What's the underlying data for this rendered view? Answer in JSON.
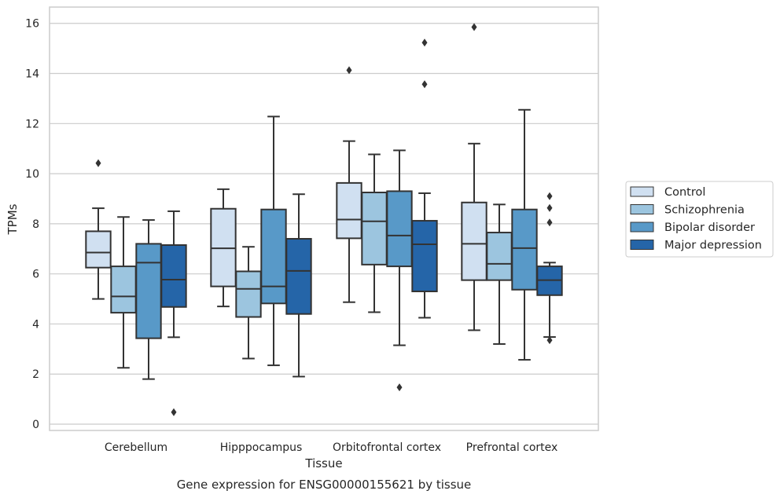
{
  "chart_data": {
    "type": "box",
    "xlabel": "Tissue",
    "ylabel": "TPMs",
    "caption": "Gene expression for ENSG00000155621 by tissue",
    "ylim": [
      -0.25,
      16.65
    ],
    "yticks": [
      0,
      2,
      4,
      6,
      8,
      10,
      12,
      14,
      16
    ],
    "grid": "horizontal",
    "legend_position": "right",
    "categories": [
      "Cerebellum",
      "Hipppocampus",
      "Orbitofrontal cortex",
      "Prefrontal cortex"
    ],
    "series": [
      {
        "name": "Control",
        "color": "#d0e0f1",
        "boxes": [
          {
            "whislo": 5.0,
            "q1": 6.25,
            "med": 6.85,
            "q3": 7.7,
            "whishi": 8.62,
            "fliers": [
              10.42
            ]
          },
          {
            "whislo": 4.7,
            "q1": 5.5,
            "med": 7.02,
            "q3": 8.6,
            "whishi": 9.38,
            "fliers": []
          },
          {
            "whislo": 4.87,
            "q1": 7.42,
            "med": 8.17,
            "q3": 9.63,
            "whishi": 11.3,
            "fliers": [
              14.13
            ]
          },
          {
            "whislo": 3.75,
            "q1": 5.75,
            "med": 7.2,
            "q3": 8.85,
            "whishi": 11.2,
            "fliers": [
              15.85
            ]
          }
        ]
      },
      {
        "name": "Schizophrenia",
        "color": "#9cc5df",
        "boxes": [
          {
            "whislo": 2.25,
            "q1": 4.45,
            "med": 5.1,
            "q3": 6.3,
            "whishi": 8.27,
            "fliers": []
          },
          {
            "whislo": 2.62,
            "q1": 4.28,
            "med": 5.4,
            "q3": 6.1,
            "whishi": 7.08,
            "fliers": []
          },
          {
            "whislo": 4.47,
            "q1": 6.37,
            "med": 8.1,
            "q3": 9.25,
            "whishi": 10.77,
            "fliers": []
          },
          {
            "whislo": 3.2,
            "q1": 5.75,
            "med": 6.4,
            "q3": 7.65,
            "whishi": 8.77,
            "fliers": []
          }
        ]
      },
      {
        "name": "Bipolar disorder",
        "color": "#5899c8",
        "boxes": [
          {
            "whislo": 1.8,
            "q1": 3.43,
            "med": 6.45,
            "q3": 7.2,
            "whishi": 8.15,
            "fliers": []
          },
          {
            "whislo": 2.35,
            "q1": 4.82,
            "med": 5.5,
            "q3": 8.57,
            "whishi": 12.28,
            "fliers": []
          },
          {
            "whislo": 3.15,
            "q1": 6.3,
            "med": 7.53,
            "q3": 9.3,
            "whishi": 10.93,
            "fliers": [
              1.47
            ]
          },
          {
            "whislo": 2.57,
            "q1": 5.37,
            "med": 7.03,
            "q3": 8.57,
            "whishi": 12.55,
            "fliers": []
          }
        ]
      },
      {
        "name": "Major depression",
        "color": "#2565a8",
        "boxes": [
          {
            "whislo": 3.47,
            "q1": 4.68,
            "med": 5.77,
            "q3": 7.15,
            "whishi": 8.5,
            "fliers": [
              0.48
            ]
          },
          {
            "whislo": 1.9,
            "q1": 4.4,
            "med": 6.12,
            "q3": 7.4,
            "whishi": 9.18,
            "fliers": []
          },
          {
            "whislo": 4.25,
            "q1": 5.3,
            "med": 7.18,
            "q3": 8.12,
            "whishi": 9.22,
            "fliers": [
              15.23,
              13.57
            ]
          },
          {
            "whislo": 3.48,
            "q1": 5.15,
            "med": 5.75,
            "q3": 6.3,
            "whishi": 6.45,
            "fliers": [
              9.1,
              8.63,
              8.05,
              3.35
            ]
          }
        ]
      }
    ]
  }
}
